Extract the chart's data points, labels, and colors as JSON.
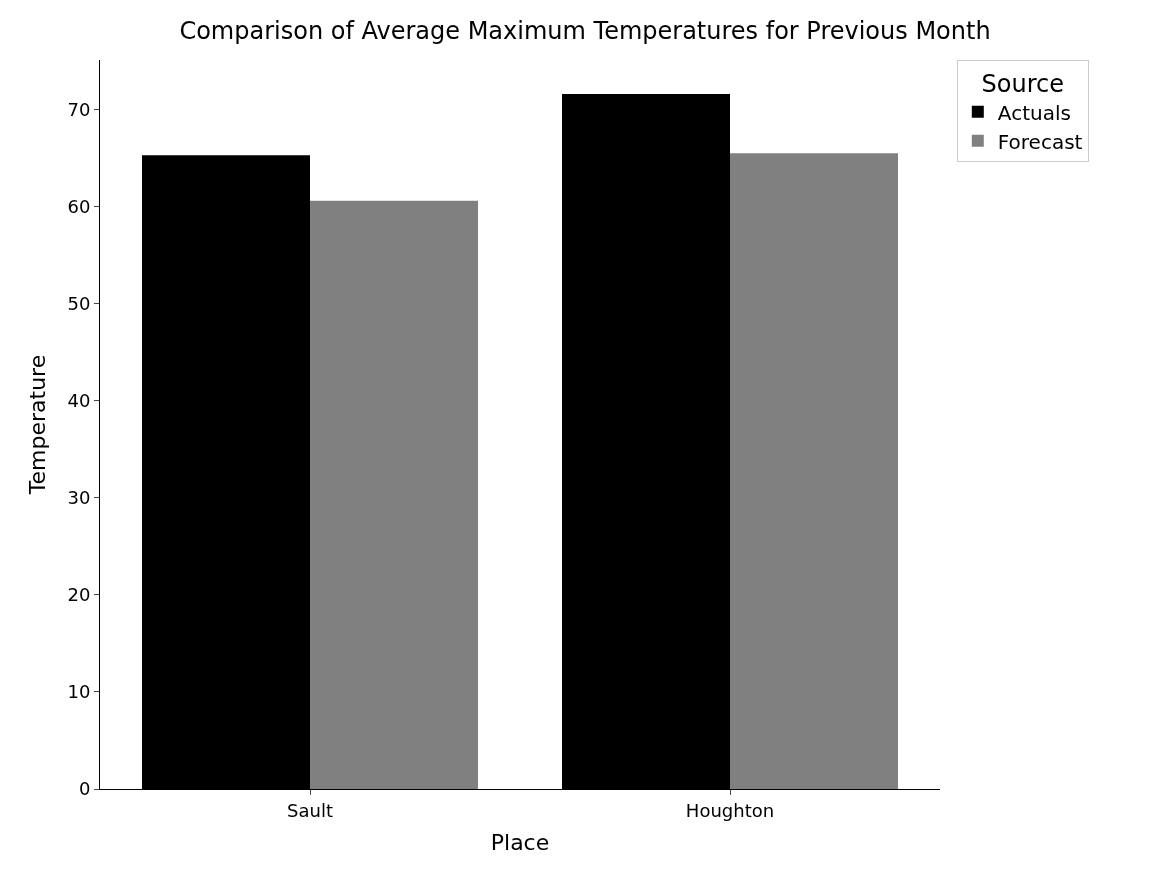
{
  "chart_data": {
    "type": "bar",
    "title": "Comparison of Average Maximum Temperatures for Previous Month",
    "xlabel": "Place",
    "ylabel": "Temperature",
    "legend_title": "Source",
    "categories": [
      "Sault",
      "Houghton"
    ],
    "series": [
      {
        "name": "Actuals",
        "color": "#000000",
        "values": [
          65.3,
          71.6
        ]
      },
      {
        "name": "Forecast",
        "color": "#808080",
        "values": [
          60.6,
          65.5
        ]
      }
    ],
    "ylim": [
      0,
      75.1
    ],
    "yticks": [
      0,
      10,
      20,
      30,
      40,
      50,
      60,
      70
    ],
    "legend": "top right"
  }
}
